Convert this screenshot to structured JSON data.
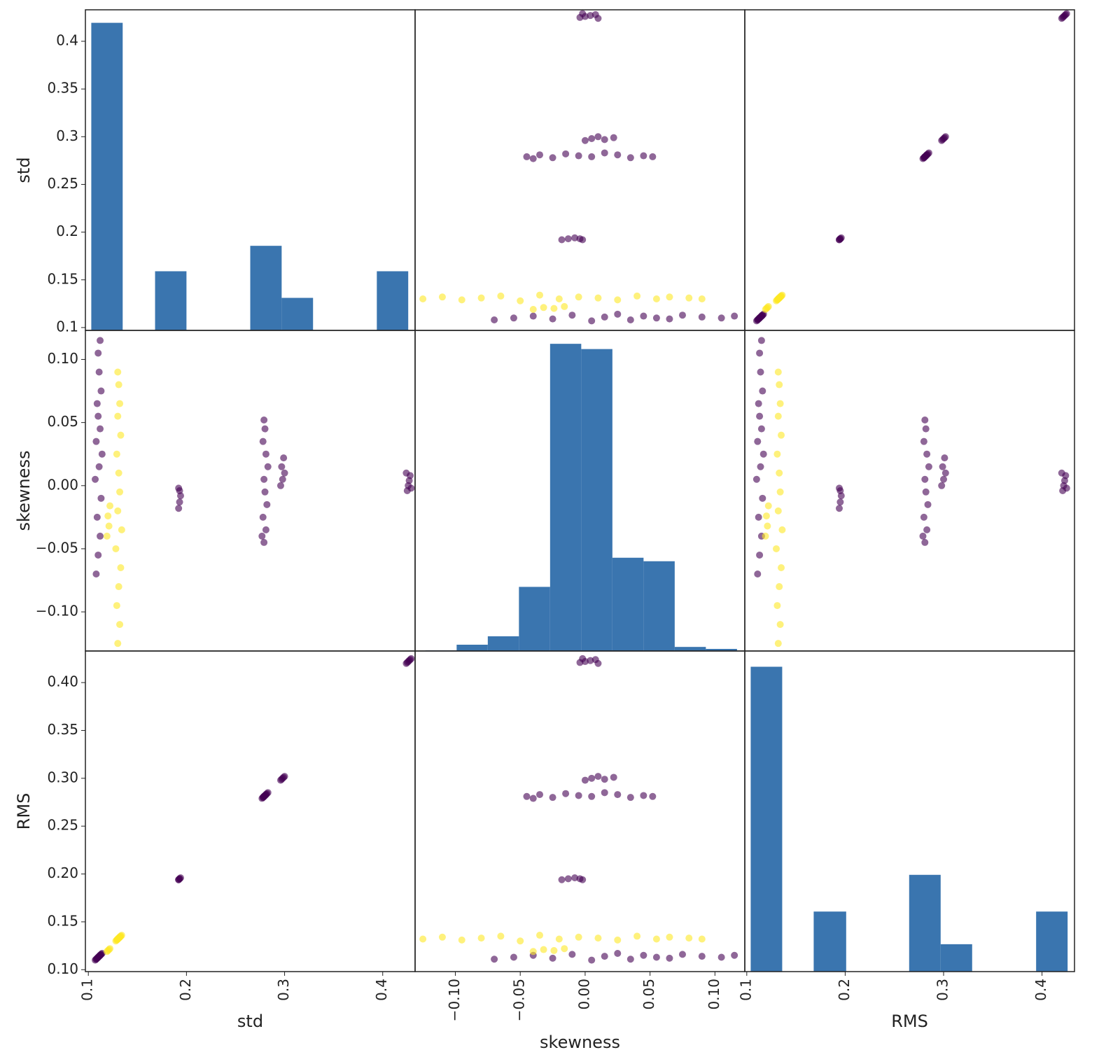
{
  "chart_data": {
    "type": "scatter_matrix",
    "hist_color": "#3a75af",
    "point_alpha": 0.6,
    "group_colors": [
      "#440154",
      "#fde725"
    ],
    "variables": [
      {
        "name": "std",
        "lim": [
          0.097,
          0.433
        ],
        "yticks": [
          0.1,
          0.15,
          0.2,
          0.25,
          0.3,
          0.35,
          0.4
        ],
        "xticks": [
          0.1,
          0.2,
          0.3,
          0.4
        ],
        "hist": {
          "bins": [
            0.103,
            0.135,
            0.168,
            0.2,
            0.232,
            0.265,
            0.297,
            0.329,
            0.361,
            0.394,
            0.426
          ],
          "counts": [
            5200,
            0,
            1000,
            0,
            0,
            1430,
            550,
            0,
            0,
            1000
          ],
          "ylim": [
            0,
            5420
          ]
        }
      },
      {
        "name": "skewness",
        "lim": [
          -0.131,
          0.123
        ],
        "yticks": [
          {
            "value": 0.1,
            "label": "0.10"
          },
          {
            "value": 0.05,
            "label": "0.05"
          },
          {
            "value": 0,
            "label": "0.00"
          },
          {
            "value": -0.05,
            "label": "−0.05"
          },
          {
            "value": -0.1,
            "label": "−0.10"
          }
        ],
        "xticks": [
          {
            "value": -0.1,
            "label": "−0.10"
          },
          {
            "value": -0.05,
            "label": "−0.05"
          },
          {
            "value": 0,
            "label": "0.00"
          },
          {
            "value": 0.05,
            "label": "0.05"
          },
          {
            "value": 0.1,
            "label": "0.10"
          }
        ],
        "hist": {
          "bins": [
            -0.123,
            -0.099,
            -0.075,
            -0.051,
            -0.027,
            -0.003,
            0.021,
            0.045,
            0.069,
            0.093,
            0.117
          ],
          "counts": [
            10,
            108,
            252,
            1100,
            5270,
            5180,
            1600,
            1540,
            70,
            36
          ],
          "ylim": [
            0,
            5500
          ]
        }
      },
      {
        "name": "RMS",
        "lim": [
          0.098,
          0.433
        ],
        "yticks": [
          {
            "value": 0.1,
            "label": "0.10"
          },
          {
            "value": 0.15,
            "label": "0.15"
          },
          {
            "value": 0.2,
            "label": "0.20"
          },
          {
            "value": 0.25,
            "label": "0.25"
          },
          {
            "value": 0.3,
            "label": "0.30"
          },
          {
            "value": 0.35,
            "label": "0.35"
          },
          {
            "value": 0.4,
            "label": "0.40"
          }
        ],
        "xticks": [
          0.1,
          0.2,
          0.3,
          0.4
        ],
        "hist": {
          "bins": [
            0.104,
            0.136,
            0.168,
            0.201,
            0.233,
            0.265,
            0.297,
            0.329,
            0.362,
            0.394,
            0.426
          ],
          "counts": [
            5230,
            0,
            1030,
            0,
            0,
            1660,
            470,
            0,
            0,
            1030
          ],
          "ylim": [
            0,
            5500
          ]
        }
      }
    ],
    "points": {
      "std": [
        0.108,
        0.11,
        0.112,
        0.109,
        0.113,
        0.107,
        0.111,
        0.114,
        0.108,
        0.112,
        0.11,
        0.109,
        0.113,
        0.111,
        0.11,
        0.112,
        0.13,
        0.132,
        0.129,
        0.131,
        0.133,
        0.128,
        0.134,
        0.13,
        0.132,
        0.131,
        0.129,
        0.133,
        0.13,
        0.132,
        0.131,
        0.13,
        0.119,
        0.121,
        0.12,
        0.122,
        0.192,
        0.193,
        0.194,
        0.193,
        0.192,
        0.279,
        0.281,
        0.278,
        0.282,
        0.28,
        0.279,
        0.283,
        0.281,
        0.278,
        0.28,
        0.279,
        0.277,
        0.296,
        0.298,
        0.3,
        0.297,
        0.299,
        0.425,
        0.426,
        0.427,
        0.428,
        0.424,
        0.429
      ],
      "skewness": [
        -0.07,
        -0.055,
        -0.04,
        -0.025,
        -0.01,
        0.005,
        0.015,
        0.025,
        0.035,
        0.045,
        0.055,
        0.065,
        0.075,
        0.09,
        0.105,
        0.115,
        -0.125,
        -0.11,
        -0.095,
        -0.08,
        -0.065,
        -0.05,
        -0.035,
        -0.02,
        -0.005,
        0.01,
        0.025,
        0.04,
        0.055,
        0.065,
        0.08,
        0.09,
        -0.04,
        -0.032,
        -0.024,
        -0.016,
        -0.018,
        -0.013,
        -0.008,
        -0.004,
        -0.002,
        -0.045,
        -0.035,
        -0.025,
        -0.015,
        -0.005,
        0.005,
        0.015,
        0.025,
        0.035,
        0.045,
        0.052,
        -0.04,
        0.0,
        0.005,
        0.01,
        0.015,
        0.022,
        -0.004,
        0,
        0.004,
        0.008,
        0.01,
        -0.002
      ],
      "RMS": [
        0.111,
        0.113,
        0.115,
        0.112,
        0.116,
        0.11,
        0.114,
        0.117,
        0.111,
        0.115,
        0.113,
        0.112,
        0.116,
        0.114,
        0.113,
        0.115,
        0.132,
        0.134,
        0.131,
        0.133,
        0.135,
        0.13,
        0.136,
        0.132,
        0.134,
        0.133,
        0.131,
        0.135,
        0.132,
        0.134,
        0.133,
        0.132,
        0.119,
        0.121,
        0.12,
        0.122,
        0.194,
        0.195,
        0.196,
        0.195,
        0.194,
        0.281,
        0.283,
        0.28,
        0.284,
        0.282,
        0.281,
        0.285,
        0.283,
        0.28,
        0.282,
        0.281,
        0.279,
        0.298,
        0.3,
        0.302,
        0.299,
        0.301,
        0.421,
        0.422,
        0.423,
        0.424,
        0.42,
        0.425
      ],
      "group": [
        0,
        0,
        0,
        0,
        0,
        0,
        0,
        0,
        0,
        0,
        0,
        0,
        0,
        0,
        0,
        0,
        1,
        1,
        1,
        1,
        1,
        1,
        1,
        1,
        1,
        1,
        1,
        1,
        1,
        1,
        1,
        1,
        1,
        1,
        1,
        1,
        0,
        0,
        0,
        0,
        0,
        0,
        0,
        0,
        0,
        0,
        0,
        0,
        0,
        0,
        0,
        0,
        0,
        0,
        0,
        0,
        0,
        0,
        0,
        0,
        0,
        0,
        0,
        0
      ]
    }
  }
}
